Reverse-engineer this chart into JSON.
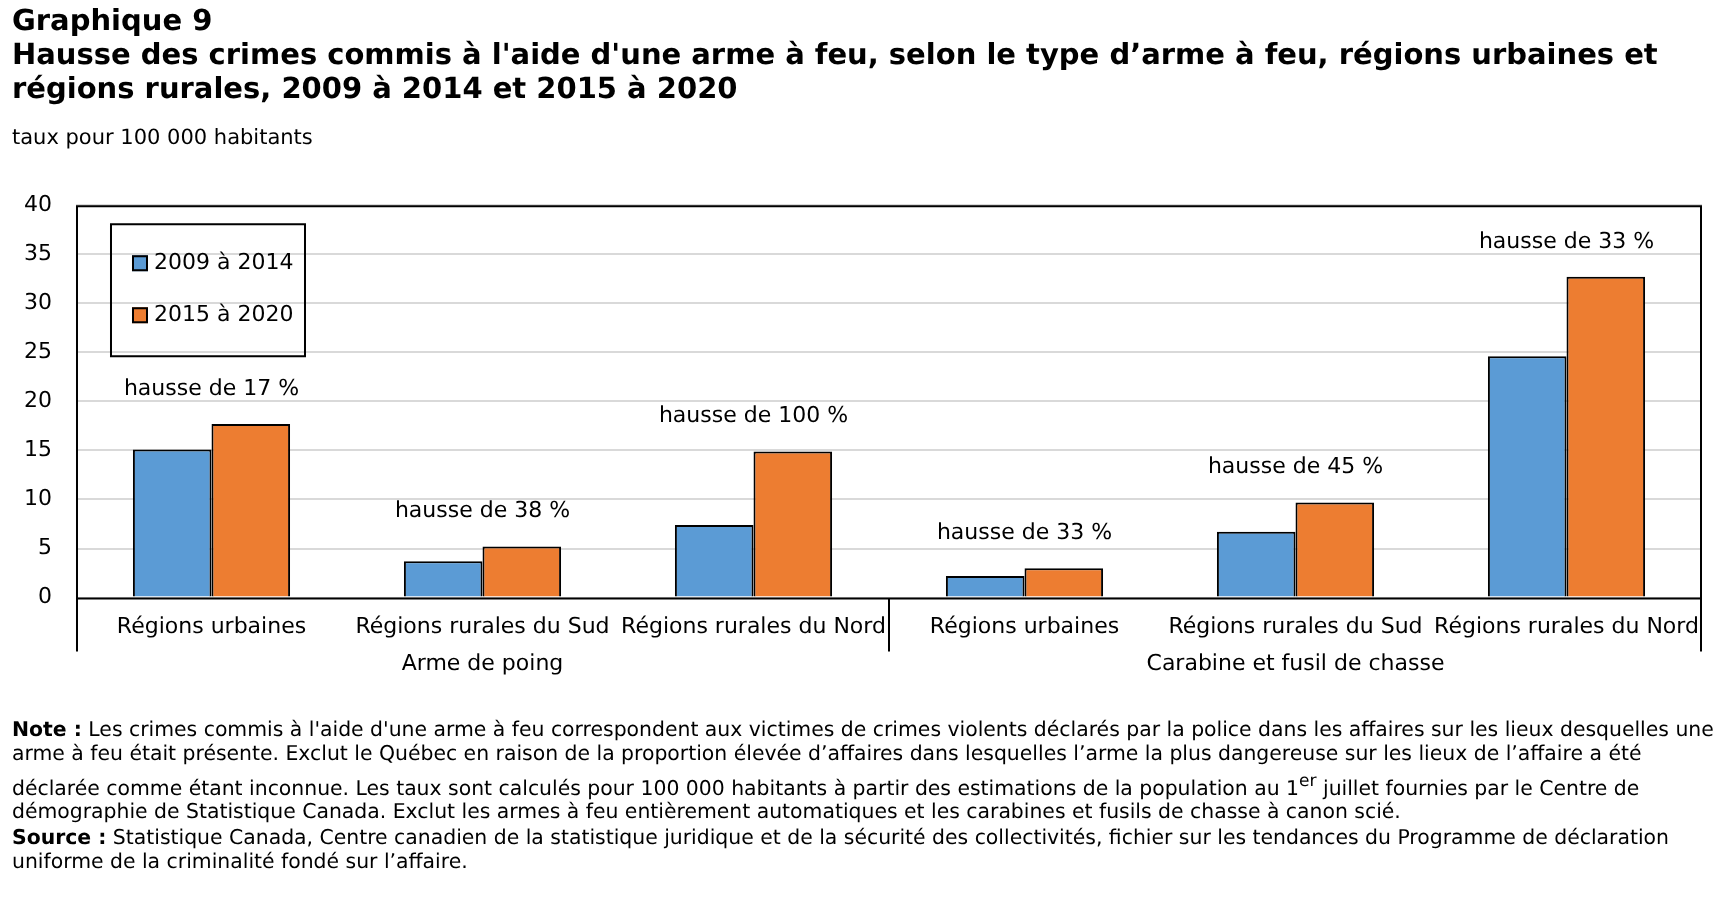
{
  "chart_data": {
    "type": "bar",
    "title": "Graphique 9",
    "subtitle": "Hausse des crimes commis à l'aide d'une arme à feu, selon le type d’arme à feu, régions urbaines et régions rurales, 2009 à 2014 et 2015 à 2020",
    "ylabel": "taux pour 100 000 habitants",
    "categories": [
      "Régions urbaines",
      "Régions rurales du Sud",
      "Régions rurales du Nord",
      "Régions urbaines",
      "Régions rurales du Sud",
      "Régions rurales du Nord"
    ],
    "series": [
      {
        "name": "2009 à 2014",
        "color": "#5b9bd5",
        "values": [
          15.1,
          3.7,
          7.4,
          2.2,
          6.7,
          24.6
        ]
      },
      {
        "name": "2015 à 2020",
        "color": "#ed7d31",
        "values": [
          17.7,
          5.2,
          14.9,
          3.0,
          9.7,
          32.7
        ]
      }
    ],
    "ylim": [
      0,
      40
    ],
    "yticks": [
      0,
      5,
      10,
      15,
      20,
      25,
      30,
      35,
      40
    ],
    "grid": "y",
    "legend": "top left",
    "annotations": [
      "hausse de 17 %",
      "hausse de 38 %",
      "hausse de 100 %",
      "hausse de 33 %",
      "hausse de 45 %",
      "hausse de 33 %",
      "Arme de poing",
      "Carabine et fusil de chasse",
      "Note : Les crimes commis à l'aide d'une arme à feu correspondent aux victimes de crimes violents déclarés par la police dans les affaires sur les lieux desquelles une arme à feu était présente. Exclut le Québec en raison de la proportion élevée d’affaires dans lesquelles l’arme la plus dangereuse sur les lieux de l’affaire a été déclarée comme étant inconnue. Les taux sont calculés pour 100 000 habitants à partir des estimations de la population au 1$^{er}$ juillet fournies par le Centre de démographie de Statistique Canada. Exclut les armes à feu entièrement automatiques et les carabines et fusils de chasse à canon scié.",
      "Source : Statistique Canada, Centre canadien de la statistique juridique et de la sécurité des collectivités, fichier sur les tendances du Programme de déclaration uniforme de la criminalité fondé sur l’affaire."
    ]
  }
}
